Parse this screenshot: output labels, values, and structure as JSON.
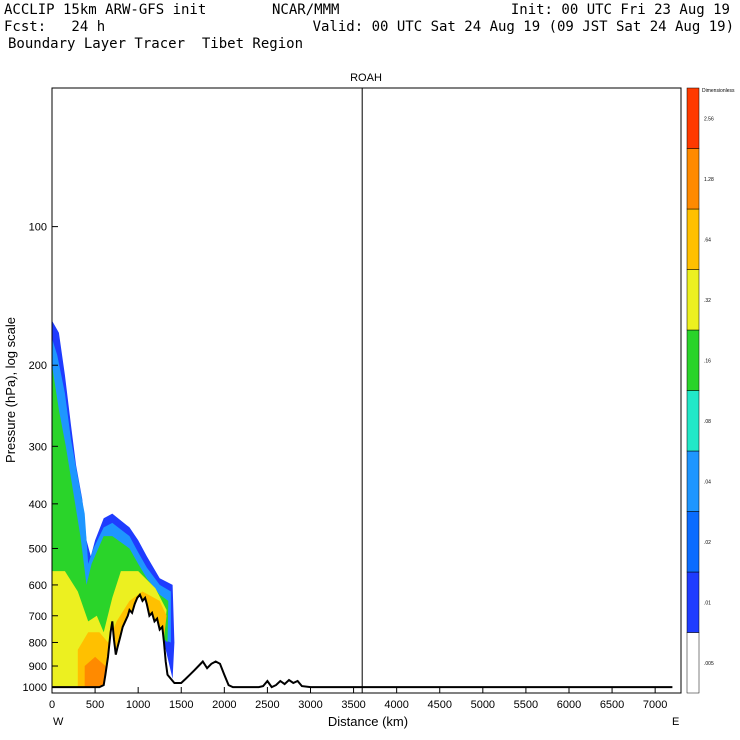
{
  "header": {
    "line1_left": "ACCLIP 15km ARW-GFS init",
    "line1_mid": "NCAR/MMM",
    "line1_right": "Init: 00 UTC Fri 23 Aug 19",
    "line2_left": "Fcst:   24 h",
    "line2_right": "Valid: 00 UTC Sat 24 Aug 19 (09 JST Sat 24 Aug 19)",
    "line3_left": "Boundary Layer Tracer  Tibet Region"
  },
  "chart_data": {
    "type": "area",
    "title": "ROAH",
    "xlabel": "Distance (km)",
    "ylabel": "Pressure (hPa), log scale",
    "x_end_labels": {
      "left": "W",
      "right": "E"
    },
    "xlim": [
      0,
      7300
    ],
    "ylim": [
      1030,
      50
    ],
    "y_scale": "log",
    "x_ticks": [
      0,
      500,
      1000,
      1500,
      2000,
      2500,
      3000,
      3500,
      4000,
      4500,
      5000,
      5500,
      6000,
      6500,
      7000
    ],
    "y_ticks": [
      100,
      200,
      300,
      400,
      500,
      600,
      700,
      800,
      900,
      1000
    ],
    "marker_line_x": 3600,
    "colorbar": {
      "title": "Dimensionless",
      "levels": [
        ".005",
        ".01",
        ".02",
        ".04",
        ".08",
        ".16",
        ".32",
        ".64",
        "1.28",
        "2.56"
      ],
      "colors": [
        "#ffffff",
        "#1f3cff",
        "#0a6cff",
        "#1e96ff",
        "#22e8c8",
        "#2ad42a",
        "#ecf020",
        "#ffc000",
        "#ff8a00",
        "#ff3a00"
      ]
    },
    "terrain": [
      [
        0,
        1000
      ],
      [
        150,
        1000
      ],
      [
        350,
        1000
      ],
      [
        550,
        1000
      ],
      [
        600,
        990
      ],
      [
        620,
        940
      ],
      [
        650,
        860
      ],
      [
        680,
        760
      ],
      [
        700,
        720
      ],
      [
        720,
        790
      ],
      [
        740,
        850
      ],
      [
        760,
        820
      ],
      [
        790,
        780
      ],
      [
        820,
        740
      ],
      [
        850,
        720
      ],
      [
        880,
        700
      ],
      [
        900,
        680
      ],
      [
        930,
        690
      ],
      [
        960,
        660
      ],
      [
        990,
        640
      ],
      [
        1020,
        630
      ],
      [
        1050,
        650
      ],
      [
        1080,
        640
      ],
      [
        1100,
        660
      ],
      [
        1130,
        700
      ],
      [
        1160,
        690
      ],
      [
        1190,
        720
      ],
      [
        1220,
        710
      ],
      [
        1250,
        750
      ],
      [
        1280,
        740
      ],
      [
        1300,
        800
      ],
      [
        1320,
        880
      ],
      [
        1340,
        940
      ],
      [
        1380,
        960
      ],
      [
        1420,
        980
      ],
      [
        1500,
        980
      ],
      [
        1550,
        960
      ],
      [
        1600,
        940
      ],
      [
        1650,
        920
      ],
      [
        1700,
        900
      ],
      [
        1750,
        880
      ],
      [
        1800,
        910
      ],
      [
        1850,
        890
      ],
      [
        1900,
        880
      ],
      [
        1950,
        890
      ],
      [
        2000,
        940
      ],
      [
        2050,
        990
      ],
      [
        2100,
        1000
      ],
      [
        2400,
        1000
      ],
      [
        2450,
        995
      ],
      [
        2500,
        970
      ],
      [
        2550,
        1000
      ],
      [
        2600,
        990
      ],
      [
        2650,
        970
      ],
      [
        2700,
        985
      ],
      [
        2750,
        965
      ],
      [
        2800,
        980
      ],
      [
        2850,
        970
      ],
      [
        2900,
        995
      ],
      [
        3000,
        1000
      ],
      [
        7200,
        1000
      ]
    ],
    "tracer_regions": [
      {
        "level": ".01",
        "polygon": [
          [
            0,
            160
          ],
          [
            80,
            170
          ],
          [
            150,
            210
          ],
          [
            220,
            270
          ],
          [
            280,
            330
          ],
          [
            350,
            390
          ],
          [
            400,
            480
          ],
          [
            450,
            520
          ],
          [
            500,
            480
          ],
          [
            600,
            430
          ],
          [
            700,
            420
          ],
          [
            900,
            450
          ],
          [
            1000,
            480
          ],
          [
            1100,
            520
          ],
          [
            1250,
            580
          ],
          [
            1400,
            600
          ],
          [
            1420,
            800
          ],
          [
            1400,
            960
          ],
          [
            1300,
            800
          ],
          [
            1100,
            650
          ],
          [
            900,
            700
          ],
          [
            700,
            750
          ],
          [
            600,
            1000
          ],
          [
            0,
            1000
          ]
        ]
      },
      {
        "level": ".04",
        "polygon": [
          [
            0,
            175
          ],
          [
            60,
            190
          ],
          [
            150,
            230
          ],
          [
            220,
            290
          ],
          [
            300,
            350
          ],
          [
            380,
            420
          ],
          [
            420,
            540
          ],
          [
            480,
            500
          ],
          [
            600,
            450
          ],
          [
            700,
            440
          ],
          [
            900,
            470
          ],
          [
            1000,
            510
          ],
          [
            1100,
            550
          ],
          [
            1250,
            600
          ],
          [
            1380,
            620
          ],
          [
            1380,
            800
          ],
          [
            1300,
            790
          ],
          [
            1100,
            660
          ],
          [
            900,
            710
          ],
          [
            700,
            770
          ],
          [
            600,
            1000
          ],
          [
            0,
            1000
          ]
        ]
      },
      {
        "level": ".16",
        "polygon": [
          [
            0,
            200
          ],
          [
            80,
            250
          ],
          [
            160,
            300
          ],
          [
            250,
            380
          ],
          [
            330,
            470
          ],
          [
            400,
            600
          ],
          [
            460,
            540
          ],
          [
            600,
            470
          ],
          [
            700,
            470
          ],
          [
            900,
            500
          ],
          [
            1000,
            540
          ],
          [
            1100,
            580
          ],
          [
            1250,
            630
          ],
          [
            1350,
            650
          ],
          [
            1340,
            800
          ],
          [
            1250,
            770
          ],
          [
            1100,
            680
          ],
          [
            900,
            720
          ],
          [
            700,
            790
          ],
          [
            600,
            1000
          ],
          [
            0,
            1000
          ]
        ]
      },
      {
        "level": ".32",
        "polygon": [
          [
            0,
            560
          ],
          [
            150,
            560
          ],
          [
            300,
            620
          ],
          [
            420,
            720
          ],
          [
            520,
            700
          ],
          [
            600,
            760
          ],
          [
            700,
            640
          ],
          [
            800,
            560
          ],
          [
            1000,
            560
          ],
          [
            1200,
            610
          ],
          [
            1330,
            680
          ],
          [
            1300,
            780
          ],
          [
            1200,
            740
          ],
          [
            1050,
            700
          ],
          [
            900,
            740
          ],
          [
            700,
            820
          ],
          [
            600,
            1000
          ],
          [
            0,
            1000
          ]
        ]
      },
      {
        "level": ".64",
        "polygon": [
          [
            300,
            830
          ],
          [
            420,
            760
          ],
          [
            550,
            760
          ],
          [
            650,
            800
          ],
          [
            750,
            720
          ],
          [
            900,
            650
          ],
          [
            1050,
            620
          ],
          [
            1250,
            650
          ],
          [
            1330,
            700
          ],
          [
            1300,
            780
          ],
          [
            1200,
            760
          ],
          [
            1050,
            700
          ],
          [
            900,
            750
          ],
          [
            700,
            850
          ],
          [
            620,
            1000
          ],
          [
            300,
            1000
          ]
        ]
      },
      {
        "level": "1.28",
        "polygon": [
          [
            380,
            900
          ],
          [
            500,
            860
          ],
          [
            620,
            900
          ],
          [
            640,
            1000
          ],
          [
            380,
            1000
          ]
        ]
      }
    ]
  }
}
